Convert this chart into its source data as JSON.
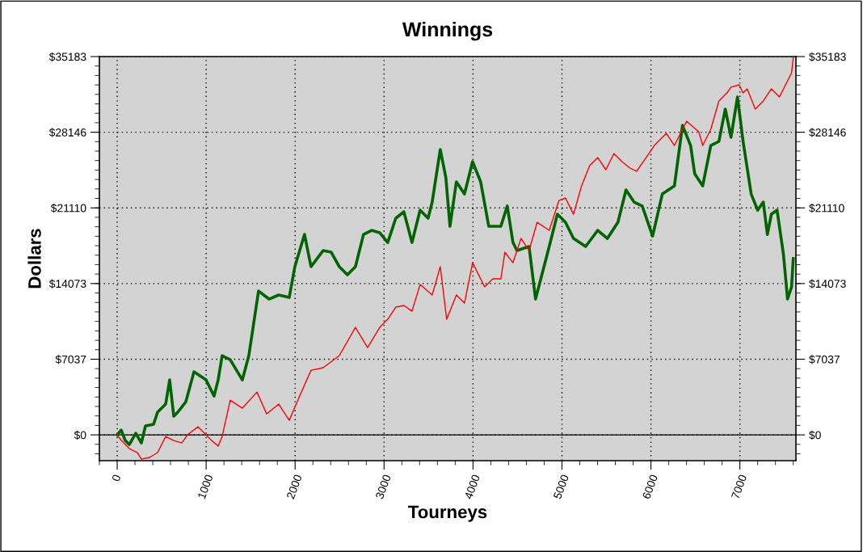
{
  "chart_data": {
    "type": "line",
    "title": "Winnings",
    "xlabel": "Tourneys",
    "ylabel": "Dollars",
    "xlim": [
      -200,
      7630
    ],
    "xticks": [
      0,
      1000,
      2000,
      3000,
      4000,
      5000,
      6000,
      7000
    ],
    "ylim": [
      -2400,
      35183
    ],
    "yticks": [
      {
        "value": 0,
        "label": "$0"
      },
      {
        "value": 7037,
        "label": "$7037"
      },
      {
        "value": 14073,
        "label": "$14073"
      },
      {
        "value": 21110,
        "label": "$21110"
      },
      {
        "value": 28146,
        "label": "$28146"
      },
      {
        "value": 35183,
        "label": "$35183"
      }
    ],
    "y2lim": [
      -2400,
      35183
    ],
    "y2ticks": [
      {
        "value": 0,
        "label": "$0"
      },
      {
        "value": 7037,
        "label": "$7037"
      },
      {
        "value": 14073,
        "label": "$14073"
      },
      {
        "value": 21110,
        "label": "$21110"
      },
      {
        "value": 28146,
        "label": "$28146"
      },
      {
        "value": 35183,
        "label": "$35183"
      }
    ],
    "grid": true,
    "ref_lines": [
      {
        "axis": "y",
        "value": 0,
        "color": "#000000",
        "line_style": "solid"
      }
    ],
    "series": [
      {
        "color": "#ff0000",
        "x": [
          0,
          45,
          136,
          227,
          272,
          363,
          454,
          545,
          636,
          726,
          790,
          908,
          999,
          1062,
          1135,
          1180,
          1271,
          1407,
          1571,
          1680,
          1816,
          1934,
          2043,
          2179,
          2315,
          2497,
          2678,
          2815,
          2951,
          3041,
          3132,
          3223,
          3314,
          3405,
          3541,
          3632,
          3704,
          3813,
          3904,
          3995,
          4131,
          4222,
          4313,
          4358,
          4449,
          4540,
          4630,
          4721,
          4857,
          4966,
          5039,
          5130,
          5220,
          5311,
          5402,
          5493,
          5584,
          5674,
          5765,
          5838,
          5947,
          6038,
          6128,
          6174,
          6264,
          6401,
          6537,
          6582,
          6673,
          6764,
          6854,
          6900,
          6991,
          7036,
          7082,
          7173,
          7263,
          7354,
          7399,
          7445,
          7536,
          7581,
          7600
        ],
        "values": [
          0,
          -500,
          -1280,
          -1650,
          -2260,
          -2100,
          -1650,
          -150,
          -530,
          -750,
          0,
          750,
          0,
          -530,
          -1050,
          -150,
          3230,
          2480,
          3980,
          1950,
          2860,
          1350,
          3460,
          6010,
          6240,
          7370,
          10000,
          8120,
          10000,
          10750,
          11880,
          12030,
          11500,
          13980,
          13010,
          15640,
          10750,
          13010,
          12250,
          16010,
          13760,
          14510,
          14510,
          16990,
          16010,
          18270,
          17140,
          19770,
          19020,
          21800,
          22030,
          20520,
          23160,
          25030,
          25790,
          24660,
          26160,
          25410,
          24810,
          24510,
          25790,
          26910,
          27670,
          28040,
          26910,
          29170,
          28190,
          26910,
          28420,
          31050,
          31800,
          32330,
          32550,
          31800,
          32180,
          30300,
          31050,
          32180,
          31800,
          31430,
          32930,
          33680,
          35100
        ]
      },
      {
        "color": "#006400",
        "x": [
          0,
          45,
          91,
          136,
          209,
          272,
          318,
          409,
          454,
          545,
          590,
          636,
          681,
          772,
          863,
          999,
          1089,
          1135,
          1180,
          1271,
          1407,
          1480,
          1589,
          1707,
          1816,
          1934,
          1997,
          2106,
          2179,
          2315,
          2406,
          2497,
          2588,
          2678,
          2769,
          2860,
          2951,
          3041,
          3132,
          3223,
          3314,
          3405,
          3495,
          3541,
          3632,
          3695,
          3741,
          3813,
          3904,
          3995,
          4086,
          4177,
          4313,
          4385,
          4449,
          4494,
          4630,
          4703,
          4857,
          4948,
          5039,
          5130,
          5266,
          5402,
          5511,
          5629,
          5720,
          5811,
          5902,
          6019,
          6128,
          6264,
          6355,
          6446,
          6492,
          6582,
          6673,
          6764,
          6836,
          6900,
          6973,
          7036,
          7127,
          7200,
          7263,
          7309,
          7354,
          7418,
          7490,
          7536,
          7581,
          7600
        ],
        "values": [
          0,
          450,
          -530,
          -900,
          150,
          -750,
          830,
          980,
          2110,
          2860,
          5110,
          1730,
          2110,
          3080,
          5860,
          5110,
          3610,
          5110,
          7370,
          6990,
          5110,
          7370,
          13380,
          12630,
          13010,
          12780,
          15640,
          18640,
          15640,
          17140,
          16990,
          15640,
          14890,
          15640,
          18640,
          19020,
          18800,
          17890,
          20150,
          20750,
          17890,
          20900,
          20150,
          21650,
          26540,
          23910,
          19400,
          23530,
          22400,
          25410,
          23530,
          19400,
          19400,
          21280,
          17890,
          17140,
          17520,
          12630,
          17520,
          20520,
          19770,
          18270,
          17520,
          19020,
          18270,
          19770,
          22780,
          21650,
          21280,
          18490,
          22400,
          23160,
          28790,
          26910,
          24280,
          23160,
          26910,
          27290,
          30300,
          27670,
          31430,
          27290,
          22400,
          20900,
          21650,
          18640,
          20520,
          20900,
          16760,
          12630,
          13760,
          16390
        ]
      }
    ]
  }
}
